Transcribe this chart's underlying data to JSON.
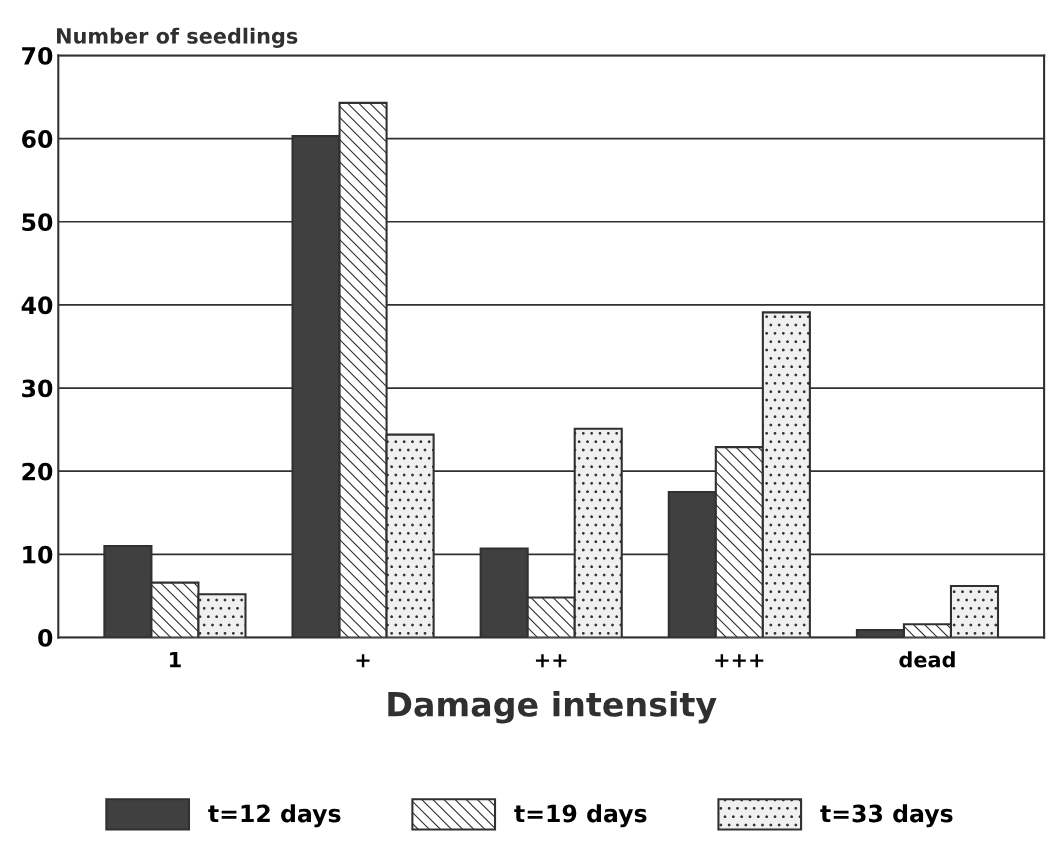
{
  "chart_data": {
    "type": "bar",
    "xlabel": "Damage intensity",
    "ylabel": "Number of seedlings",
    "categories": [
      "1",
      "+",
      "++",
      "+++",
      "dead"
    ],
    "series": [
      {
        "name": "t=12 days",
        "color": "#404040",
        "values": [
          11.0,
          60.3,
          10.7,
          17.5,
          0.9
        ]
      },
      {
        "name": "t=19 days",
        "color": "#ffffff",
        "values": [
          6.6,
          64.3,
          4.8,
          22.9,
          1.6
        ]
      },
      {
        "name": "t=33 days",
        "color": "#f0f0f0",
        "values": [
          5.2,
          24.4,
          25.1,
          39.1,
          6.2
        ]
      }
    ],
    "ylim": [
      0,
      70
    ],
    "yticks": [
      0,
      10,
      20,
      30,
      40,
      50,
      60,
      70
    ],
    "grid": "y",
    "legend": "bottom"
  }
}
